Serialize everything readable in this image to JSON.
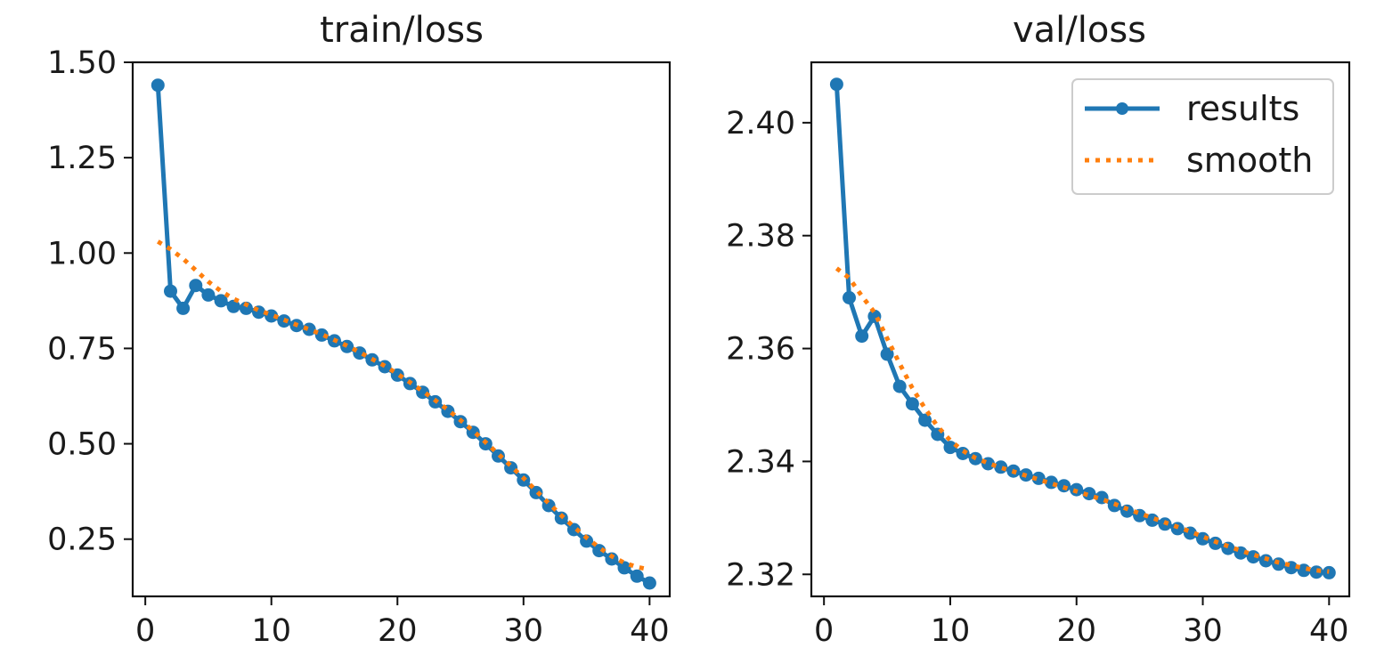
{
  "colors": {
    "results": "#1f77b4",
    "smooth": "#ff7f0e",
    "axes": "#111111"
  },
  "chart_data": [
    {
      "type": "line",
      "title": "train/loss",
      "xlabel": "",
      "ylabel": "",
      "xlim": [
        -1,
        41.6
      ],
      "ylim": [
        0.1,
        1.5
      ],
      "xticks": [
        "0",
        "10",
        "20",
        "30",
        "40"
      ],
      "yticks": [
        "0.25",
        "0.50",
        "0.75",
        "1.00",
        "1.25",
        "1.50"
      ],
      "x": [
        1,
        2,
        3,
        4,
        5,
        6,
        7,
        8,
        9,
        10,
        11,
        12,
        13,
        14,
        15,
        16,
        17,
        18,
        19,
        20,
        21,
        22,
        23,
        24,
        25,
        26,
        27,
        28,
        29,
        30,
        31,
        32,
        33,
        34,
        35,
        36,
        37,
        38,
        39,
        40
      ],
      "series": [
        {
          "name": "results",
          "style": "solid-markers",
          "values": [
            1.44,
            0.9,
            0.855,
            0.915,
            0.89,
            0.875,
            0.86,
            0.855,
            0.845,
            0.835,
            0.822,
            0.81,
            0.8,
            0.785,
            0.77,
            0.755,
            0.738,
            0.72,
            0.702,
            0.68,
            0.658,
            0.635,
            0.61,
            0.585,
            0.558,
            0.53,
            0.5,
            0.468,
            0.437,
            0.405,
            0.372,
            0.338,
            0.305,
            0.275,
            0.245,
            0.22,
            0.198,
            0.175,
            0.153,
            0.135
          ]
        },
        {
          "name": "smooth",
          "style": "dotted",
          "values": [
            1.03,
            1.01,
            0.985,
            0.955,
            0.925,
            0.9,
            0.88,
            0.865,
            0.85,
            0.838,
            0.825,
            0.812,
            0.8,
            0.787,
            0.772,
            0.757,
            0.74,
            0.722,
            0.704,
            0.683,
            0.661,
            0.638,
            0.614,
            0.589,
            0.562,
            0.534,
            0.504,
            0.473,
            0.442,
            0.41,
            0.377,
            0.344,
            0.312,
            0.282,
            0.254,
            0.228,
            0.205,
            0.188,
            0.177,
            0.17
          ]
        }
      ]
    },
    {
      "type": "line",
      "title": "val/loss",
      "xlabel": "",
      "ylabel": "",
      "xlim": [
        -1,
        41.6
      ],
      "ylim": [
        2.3161,
        2.4107
      ],
      "xticks": [
        "0",
        "10",
        "20",
        "30",
        "40"
      ],
      "yticks": [
        "2.32",
        "2.34",
        "2.36",
        "2.38",
        "2.40"
      ],
      "legend": {
        "position": "top-right",
        "entries": [
          "results",
          "smooth"
        ]
      },
      "x": [
        1,
        2,
        3,
        4,
        5,
        6,
        7,
        8,
        9,
        10,
        11,
        12,
        13,
        14,
        15,
        16,
        17,
        18,
        19,
        20,
        21,
        22,
        23,
        24,
        25,
        26,
        27,
        28,
        29,
        30,
        31,
        32,
        33,
        34,
        35,
        36,
        37,
        38,
        39,
        40
      ],
      "series": [
        {
          "name": "results",
          "style": "solid-markers",
          "values": [
            2.4068,
            2.369,
            2.3622,
            2.3657,
            2.359,
            2.3533,
            2.3502,
            2.3473,
            2.3448,
            2.3425,
            2.3414,
            2.3405,
            2.3396,
            2.339,
            2.3383,
            2.3376,
            2.337,
            2.3363,
            2.3357,
            2.335,
            2.3343,
            2.3336,
            2.3322,
            2.3312,
            2.3304,
            2.3296,
            2.3289,
            2.3281,
            2.3273,
            2.3263,
            2.3255,
            2.3246,
            2.3238,
            2.3231,
            2.3224,
            2.3218,
            2.3212,
            2.3207,
            2.3204,
            2.3203
          ]
        },
        {
          "name": "smooth",
          "style": "dotted",
          "values": [
            2.3742,
            2.3725,
            2.3693,
            2.3664,
            2.3618,
            2.3573,
            2.353,
            2.3494,
            2.3462,
            2.3437,
            2.3419,
            2.3406,
            2.3397,
            2.3389,
            2.3382,
            2.3375,
            2.3368,
            2.3361,
            2.3354,
            2.3347,
            2.334,
            2.3333,
            2.3325,
            2.3316,
            2.3308,
            2.33,
            2.3292,
            2.3284,
            2.3276,
            2.3267,
            2.3258,
            2.325,
            2.3242,
            2.3235,
            2.3228,
            2.3221,
            2.3216,
            2.3211,
            2.3207,
            2.3205
          ]
        }
      ]
    }
  ]
}
